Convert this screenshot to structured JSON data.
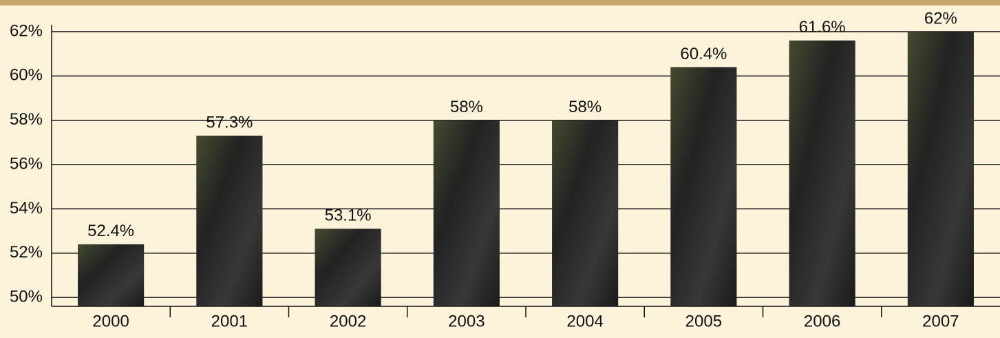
{
  "chart_data": {
    "type": "bar",
    "categories": [
      "2000",
      "2001",
      "2002",
      "2003",
      "2004",
      "2005",
      "2006",
      "2007"
    ],
    "values": [
      52.4,
      57.3,
      53.1,
      58,
      58,
      60.4,
      61.6,
      62
    ],
    "value_labels": [
      "52.4%",
      "57.3%",
      "53.1%",
      "58%",
      "58%",
      "60.4%",
      "61.6%",
      "62%"
    ],
    "color": "#2e2e2e",
    "ylim": [
      49.6,
      62
    ],
    "yticks": [
      {
        "value": 50,
        "label": "50%"
      },
      {
        "value": 52,
        "label": "52%"
      },
      {
        "value": 54,
        "label": "54%"
      },
      {
        "value": 56,
        "label": "56%"
      },
      {
        "value": 58,
        "label": "58%"
      },
      {
        "value": 60,
        "label": "60%"
      },
      {
        "value": 62,
        "label": "62%"
      }
    ],
    "grid": true
  }
}
